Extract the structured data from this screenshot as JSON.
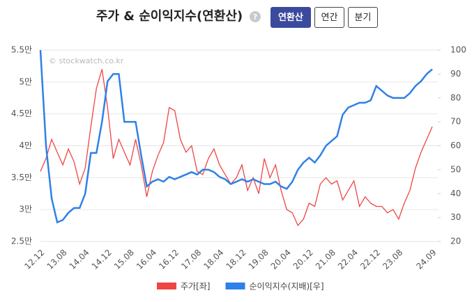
{
  "header": {
    "title": "주가 & 순이익지수(연환산)",
    "help": "?",
    "buttons": [
      "연환산",
      "연간",
      "분기"
    ],
    "watermark": "© stockwatch.co.kr"
  },
  "chart_data": {
    "type": "line",
    "categories": [
      "12.12",
      null,
      null,
      null,
      "13.08",
      null,
      null,
      null,
      "14.04",
      null,
      null,
      null,
      "14.12",
      null,
      null,
      null,
      "15.08",
      null,
      null,
      null,
      "16.04",
      null,
      null,
      null,
      "16.12",
      null,
      null,
      null,
      "17.08",
      null,
      null,
      null,
      "18.04",
      null,
      null,
      null,
      "18.12",
      null,
      null,
      null,
      "19.08",
      null,
      null,
      null,
      "20.04",
      null,
      null,
      null,
      "20.12",
      null,
      null,
      null,
      "21.08",
      null,
      null,
      null,
      "22.04",
      null,
      null,
      null,
      "22.12",
      null,
      null,
      null,
      "23.08",
      null,
      null,
      null,
      null,
      null,
      "24.09"
    ],
    "series": [
      {
        "name": "주가[좌]",
        "color": "#f04444",
        "values": [
          36000,
          38000,
          41000,
          39000,
          37000,
          39500,
          37500,
          34000,
          36500,
          43000,
          49000,
          52000,
          46000,
          38000,
          41000,
          39000,
          37000,
          41000,
          37000,
          32000,
          36000,
          38500,
          40500,
          46000,
          45500,
          41000,
          39000,
          40000,
          36000,
          35500,
          38000,
          39500,
          37000,
          35500,
          34000,
          35000,
          37000,
          33000,
          35000,
          32500,
          38000,
          35000,
          37000,
          33000,
          30000,
          29500,
          27500,
          28500,
          31000,
          30500,
          34000,
          35000,
          34000,
          34500,
          31500,
          33000,
          34500,
          30500,
          32000,
          31000,
          30500,
          30500,
          29500,
          30000,
          28500,
          31000,
          33000,
          36500,
          39000,
          41000,
          43000
        ]
      },
      {
        "name": "순이익지수(지배)[우]",
        "color": "#2f80e8",
        "axis": "y2",
        "values": [
          100,
          60,
          38,
          28,
          29,
          32,
          34,
          34,
          40,
          57,
          57,
          70,
          87,
          90,
          90,
          70,
          70,
          70,
          56,
          43,
          45,
          46,
          45,
          47,
          46,
          47,
          48,
          49,
          48,
          50,
          50,
          49,
          47,
          46,
          44,
          45,
          46,
          45,
          46,
          45,
          44,
          44,
          45,
          43,
          42,
          45,
          50,
          53,
          55,
          53,
          56,
          60,
          62,
          64,
          73,
          76,
          77,
          78,
          78,
          79,
          85,
          83,
          81,
          80,
          80,
          80,
          82,
          85,
          87,
          90,
          92
        ]
      }
    ],
    "ylim": [
      25000,
      55000
    ],
    "yticks": [
      {
        "value": 25000,
        "label": "2.5만"
      },
      {
        "value": 30000,
        "label": "3만"
      },
      {
        "value": 35000,
        "label": "3.5만"
      },
      {
        "value": 40000,
        "label": "4만"
      },
      {
        "value": 45000,
        "label": "4.5만"
      },
      {
        "value": 50000,
        "label": "5만"
      },
      {
        "value": 55000,
        "label": "5.5만"
      }
    ],
    "y2lim": [
      20,
      100
    ],
    "y2ticks": [
      20,
      30,
      40,
      50,
      60,
      70,
      80,
      90,
      100
    ],
    "grid": true
  }
}
